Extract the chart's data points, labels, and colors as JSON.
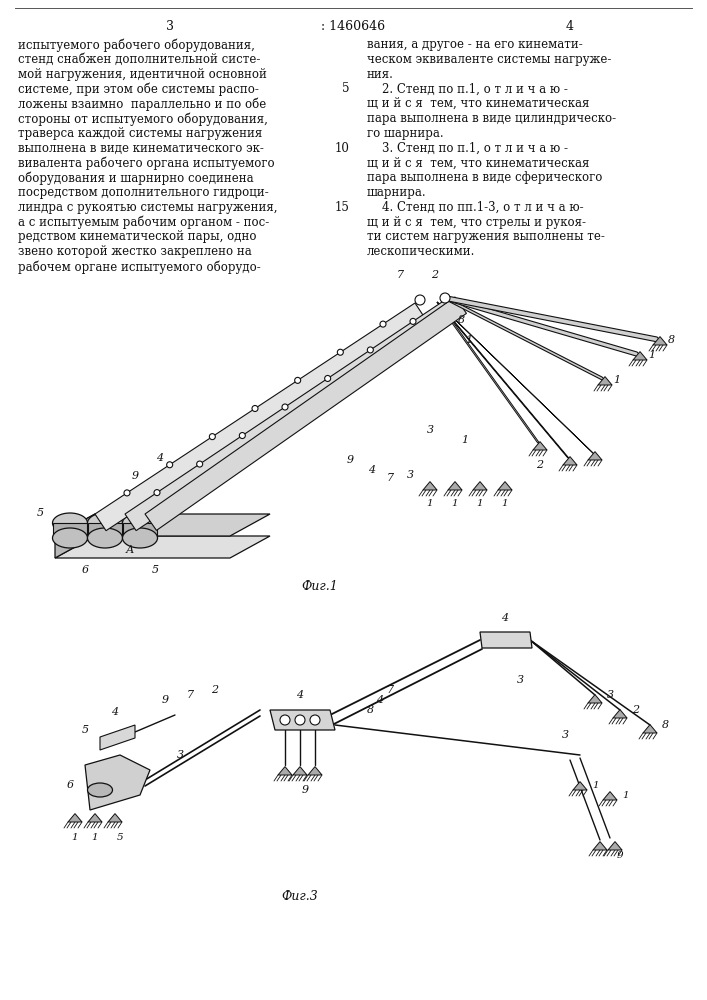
{
  "page_number_left": "3",
  "patent_number": ": 1460646",
  "page_number_right": "4",
  "background_color": "#ffffff",
  "text_color": "#111111",
  "left_col_lines": [
    "испытуемого рабочего оборудования,",
    "стенд снабжен дополнительной систе-",
    "мой нагружения, идентичной основной",
    "системе, при этом обе системы распо-",
    "ложены взаимно  параллельно и по обе",
    "стороны от испытуемого оборудования,",
    "траверса каждой системы нагружения",
    "выполнена в виде кинематического эк-",
    "вивалента рабочего органа испытуемого",
    "оборудования и шарнирно соединена",
    "посредством дополнительного гидроци-",
    "линдра с рукоятью системы нагружения,",
    "а с испытуемым рабочим органом - пос-",
    "редством кинематической пары, одно",
    "звено которой жестко закреплено на",
    "рабочем органе испытуемого оборудо-"
  ],
  "right_col_blocks": [
    {
      "line_num": null,
      "lines": [
        "вания, а другое - на его кинемати-",
        "ческом эквиваленте системы нагруже-",
        "ния."
      ]
    },
    {
      "line_num": "5",
      "lines": [
        "    2. Стенд по п.1, о т л и ч а ю -",
        "щ и й с я  тем, что кинематическая",
        "пара выполнена в виде цилиндрическо-",
        "го шарнира."
      ]
    },
    {
      "line_num": "10",
      "lines": [
        "    3. Стенд по п.1, о т л и ч а ю -",
        "щ и й с я  тем, что кинематическая",
        "пара выполнена в виде сферического",
        "шарнира."
      ]
    },
    {
      "line_num": "15",
      "lines": [
        "    4. Стенд по пп.1-3, о т л и ч а ю-",
        "щ и й с я  тем, что стрелы и рукоя-",
        "ти систем нагружения выполнены те-",
        "лескопическими."
      ]
    }
  ],
  "fig1_caption": "Фиг.1",
  "fig3_caption": "Фиг.3"
}
